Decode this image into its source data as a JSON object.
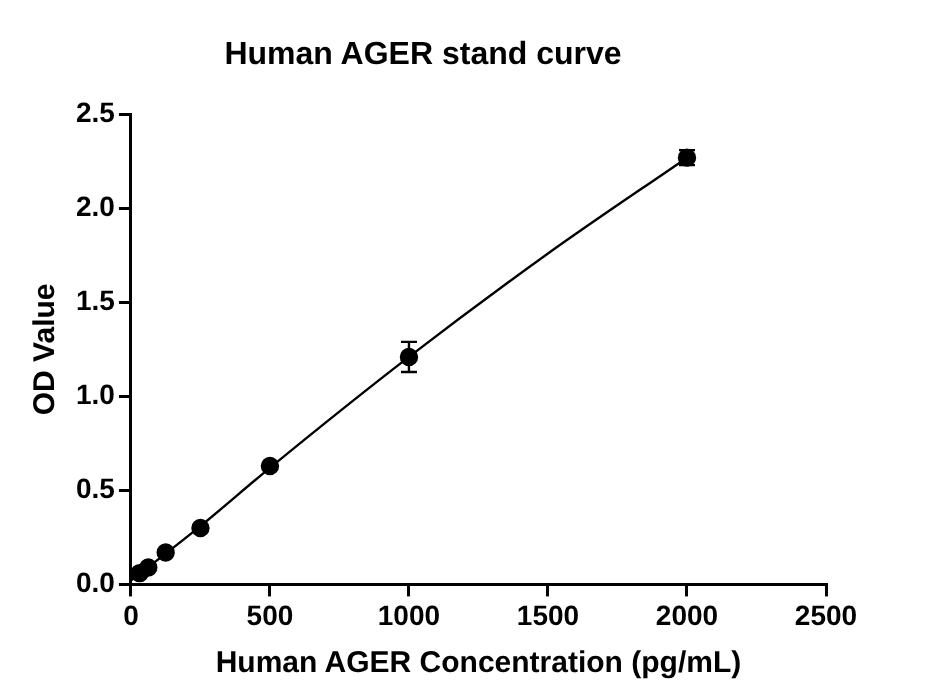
{
  "chart_data": {
    "type": "scatter",
    "title": "Human AGER stand curve",
    "xlabel": "Human AGER Concentration (pg/mL)",
    "ylabel": "OD Value",
    "xlim": [
      0,
      2500
    ],
    "xticks": [
      0,
      500,
      1000,
      1500,
      2000,
      2500
    ],
    "ylim": [
      0,
      2.5
    ],
    "yticks": [
      {
        "value": 0,
        "label": "0.0"
      },
      0.5,
      {
        "value": 1,
        "label": "1.0"
      },
      1.5,
      {
        "value": 2,
        "label": "2.0"
      },
      2.5
    ],
    "grid": false,
    "legend": false,
    "marker": "circle",
    "series": [
      {
        "color": "#000000",
        "x": [
          31.25,
          62.5,
          125,
          250,
          500,
          1000,
          2000
        ],
        "values": [
          0.06,
          0.09,
          0.17,
          0.3,
          0.63,
          1.21,
          2.27
        ],
        "errors": [
          null,
          null,
          null,
          null,
          null,
          0.08,
          0.04
        ]
      },
      {
        "type": "line",
        "color": "#000000",
        "marker": "none",
        "line_style": "solid",
        "x": [
          0,
          250,
          500,
          1000,
          1500,
          2000
        ],
        "values": [
          0.02,
          0.31,
          0.62,
          1.21,
          1.76,
          2.27
        ]
      }
    ]
  }
}
